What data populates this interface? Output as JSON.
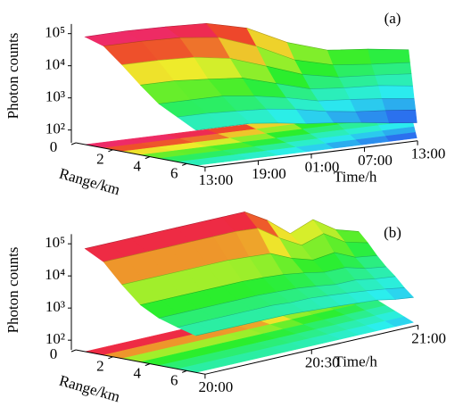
{
  "chart_data": [
    {
      "type": "surface3d",
      "panel_label": "(a)",
      "zlabel": "Photon counts",
      "ylabel": "Range/km",
      "xlabel": "Time/h",
      "zscale": "log",
      "zlim": [
        40,
        200000
      ],
      "zticks": [
        {
          "value": 100,
          "label": "10²"
        },
        {
          "value": 1000,
          "label": "10³"
        },
        {
          "value": 10000,
          "label": "10⁴"
        },
        {
          "value": 100000,
          "label": "10⁵"
        }
      ],
      "ylim": [
        0,
        7
      ],
      "yticks": [
        0,
        2,
        4,
        6
      ],
      "x": [
        "13:00",
        "16:00",
        "19:00",
        "22:00",
        "01:00",
        "04:00",
        "07:00",
        "10:00",
        "13:00"
      ],
      "xticks": [
        "13:00",
        "19:00",
        "01:00",
        "07:00",
        "13:00"
      ],
      "ranges": [
        0.5,
        1.5,
        2.5,
        3.5,
        4.5,
        5.5,
        6.5
      ],
      "values": [
        [
          90000,
          95000,
          90000,
          80000,
          40000,
          10000,
          4000,
          3000,
          2000
        ],
        [
          60000,
          60000,
          55000,
          40000,
          15000,
          4000,
          2000,
          1500,
          1200
        ],
        [
          20000,
          20000,
          18000,
          12000,
          5000,
          2000,
          1200,
          1000,
          800
        ],
        [
          6000,
          6000,
          5000,
          4000,
          2000,
          1000,
          800,
          700,
          500
        ],
        [
          2000,
          2000,
          2000,
          1500,
          1000,
          600,
          500,
          400,
          300
        ],
        [
          1000,
          1000,
          900,
          800,
          600,
          400,
          300,
          250,
          200
        ],
        [
          500,
          500,
          500,
          400,
          300,
          250,
          200,
          150,
          120
        ]
      ]
    },
    {
      "type": "surface3d",
      "panel_label": "(b)",
      "zlabel": "Photon counts",
      "ylabel": "Range/km",
      "xlabel": "Time/h",
      "zscale": "log",
      "zlim": [
        50,
        200000
      ],
      "zticks": [
        {
          "value": 100,
          "label": "10²"
        },
        {
          "value": 1000,
          "label": "10³"
        },
        {
          "value": 10000,
          "label": "10⁴"
        },
        {
          "value": 100000,
          "label": "10⁵"
        }
      ],
      "ylim": [
        0,
        7
      ],
      "yticks": [
        0,
        2,
        4,
        6
      ],
      "x": [
        "20:00",
        "20:05",
        "20:10",
        "20:15",
        "20:20",
        "20:25",
        "20:30",
        "20:35",
        "20:40",
        "20:45",
        "20:50",
        "20:55",
        "21:00"
      ],
      "xticks": [
        "20:00",
        "20:30",
        "21:00"
      ],
      "ranges": [
        0.5,
        1.5,
        2.5,
        3.5,
        4.5,
        5.5,
        6.5
      ],
      "values": [
        [
          80000,
          80000,
          80000,
          80000,
          80000,
          80000,
          80000,
          80000,
          30000,
          8000,
          15000,
          5000,
          3000
        ],
        [
          40000,
          40000,
          40000,
          40000,
          40000,
          40000,
          40000,
          35000,
          12000,
          5000,
          8000,
          3000,
          2000
        ],
        [
          10000,
          10000,
          10000,
          10000,
          10000,
          10000,
          9000,
          8000,
          4000,
          2500,
          3000,
          1500,
          1200
        ],
        [
          3000,
          3000,
          3000,
          3000,
          3000,
          3000,
          2800,
          2500,
          2000,
          1500,
          1500,
          1000,
          800
        ],
        [
          1500,
          1500,
          1500,
          1500,
          1500,
          1500,
          1400,
          1300,
          1100,
          900,
          900,
          700,
          600
        ],
        [
          1000,
          1000,
          1000,
          1000,
          1000,
          1000,
          900,
          900,
          800,
          700,
          600,
          500,
          400
        ],
        [
          700,
          700,
          700,
          700,
          700,
          700,
          650,
          600,
          550,
          500,
          450,
          350,
          300
        ]
      ]
    }
  ]
}
